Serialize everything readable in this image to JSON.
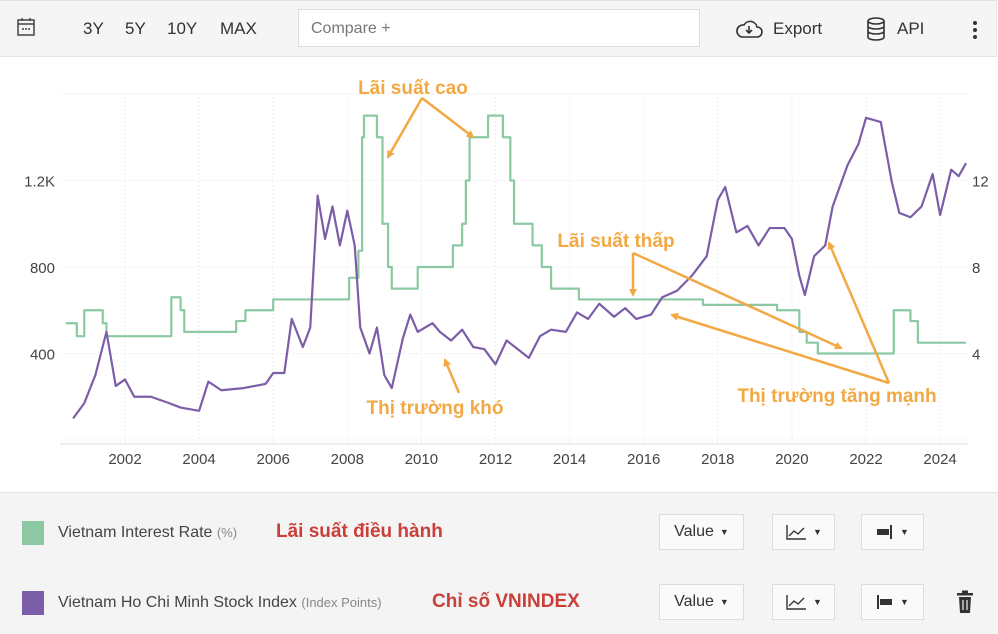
{
  "toolbar": {
    "ranges": [
      "3Y",
      "5Y",
      "10Y",
      "MAX"
    ],
    "compare_placeholder": "Compare +",
    "export_label": "Export",
    "api_label": "API"
  },
  "colors": {
    "rate": "#8cc9a3",
    "index": "#7b5ea7",
    "annotation": "#f2a843",
    "note": "#c9403a"
  },
  "chart_data": {
    "type": "line",
    "x_ticks": [
      "2002",
      "2004",
      "2006",
      "2008",
      "2010",
      "2012",
      "2014",
      "2016",
      "2018",
      "2020",
      "2022",
      "2024"
    ],
    "left_axis": {
      "ticks": [
        "400",
        "800",
        "1.2K"
      ],
      "tick_values": [
        400,
        800,
        1200
      ],
      "range": [
        0,
        1600
      ]
    },
    "right_axis": {
      "ticks": [
        "4",
        "8",
        "12"
      ],
      "tick_values": [
        4,
        8,
        12
      ],
      "range": [
        0,
        16
      ]
    },
    "xlim": [
      2000.4,
      2024.9
    ],
    "series": [
      {
        "name": "Vietnam Interest Rate",
        "axis": "right",
        "step": true,
        "points": [
          [
            2000.4,
            5.4
          ],
          [
            2000.7,
            4.8
          ],
          [
            2000.9,
            6
          ],
          [
            2001.4,
            5.4
          ],
          [
            2001.5,
            4.8
          ],
          [
            2003.25,
            6.6
          ],
          [
            2003.5,
            6
          ],
          [
            2003.6,
            5
          ],
          [
            2005.0,
            5.5
          ],
          [
            2005.25,
            6
          ],
          [
            2006.0,
            6.5
          ],
          [
            2008.05,
            7.5
          ],
          [
            2008.3,
            8.75
          ],
          [
            2008.4,
            14
          ],
          [
            2008.45,
            15
          ],
          [
            2008.8,
            14
          ],
          [
            2008.95,
            10
          ],
          [
            2009.1,
            8
          ],
          [
            2009.2,
            7
          ],
          [
            2009.9,
            8
          ],
          [
            2010.85,
            9
          ],
          [
            2011.1,
            10
          ],
          [
            2011.2,
            12
          ],
          [
            2011.3,
            14
          ],
          [
            2011.8,
            15
          ],
          [
            2012.2,
            14
          ],
          [
            2012.4,
            12
          ],
          [
            2012.5,
            10
          ],
          [
            2013.0,
            9
          ],
          [
            2013.25,
            8
          ],
          [
            2013.5,
            7
          ],
          [
            2014.25,
            6.5
          ],
          [
            2017.6,
            6.25
          ],
          [
            2019.6,
            6
          ],
          [
            2020.2,
            5
          ],
          [
            2020.4,
            4.5
          ],
          [
            2020.7,
            4
          ],
          [
            2022.6,
            4
          ],
          [
            2022.75,
            6
          ],
          [
            2023.2,
            5.5
          ],
          [
            2023.4,
            4.5
          ],
          [
            2024.7,
            4.5
          ]
        ]
      },
      {
        "name": "Vietnam Ho Chi Minh Stock Index",
        "axis": "left",
        "step": false,
        "points": [
          [
            2000.6,
            100
          ],
          [
            2000.9,
            170
          ],
          [
            2001.2,
            300
          ],
          [
            2001.5,
            500
          ],
          [
            2001.75,
            250
          ],
          [
            2002.0,
            280
          ],
          [
            2002.25,
            200
          ],
          [
            2002.7,
            200
          ],
          [
            2003.2,
            170
          ],
          [
            2003.5,
            150
          ],
          [
            2004.0,
            135
          ],
          [
            2004.25,
            270
          ],
          [
            2004.6,
            230
          ],
          [
            2005.2,
            240
          ],
          [
            2005.8,
            260
          ],
          [
            2006.0,
            310
          ],
          [
            2006.3,
            310
          ],
          [
            2006.5,
            560
          ],
          [
            2006.8,
            430
          ],
          [
            2007.0,
            520
          ],
          [
            2007.2,
            1130
          ],
          [
            2007.4,
            930
          ],
          [
            2007.6,
            1080
          ],
          [
            2007.8,
            900
          ],
          [
            2008.0,
            1060
          ],
          [
            2008.2,
            900
          ],
          [
            2008.35,
            520
          ],
          [
            2008.6,
            400
          ],
          [
            2008.8,
            520
          ],
          [
            2009.0,
            300
          ],
          [
            2009.2,
            240
          ],
          [
            2009.5,
            470
          ],
          [
            2009.7,
            580
          ],
          [
            2009.9,
            500
          ],
          [
            2010.3,
            540
          ],
          [
            2010.5,
            500
          ],
          [
            2010.8,
            460
          ],
          [
            2011.1,
            510
          ],
          [
            2011.4,
            430
          ],
          [
            2011.7,
            420
          ],
          [
            2012.0,
            350
          ],
          [
            2012.3,
            460
          ],
          [
            2012.6,
            420
          ],
          [
            2012.9,
            380
          ],
          [
            2013.2,
            480
          ],
          [
            2013.5,
            510
          ],
          [
            2013.9,
            500
          ],
          [
            2014.2,
            590
          ],
          [
            2014.5,
            560
          ],
          [
            2014.8,
            630
          ],
          [
            2015.2,
            570
          ],
          [
            2015.5,
            610
          ],
          [
            2015.8,
            560
          ],
          [
            2016.2,
            580
          ],
          [
            2016.5,
            660
          ],
          [
            2016.9,
            690
          ],
          [
            2017.3,
            760
          ],
          [
            2017.7,
            850
          ],
          [
            2018.0,
            1110
          ],
          [
            2018.2,
            1170
          ],
          [
            2018.5,
            960
          ],
          [
            2018.8,
            990
          ],
          [
            2019.1,
            900
          ],
          [
            2019.4,
            980
          ],
          [
            2019.8,
            980
          ],
          [
            2020.0,
            930
          ],
          [
            2020.2,
            760
          ],
          [
            2020.35,
            670
          ],
          [
            2020.6,
            850
          ],
          [
            2020.9,
            900
          ],
          [
            2021.1,
            1080
          ],
          [
            2021.5,
            1270
          ],
          [
            2021.8,
            1370
          ],
          [
            2022.0,
            1490
          ],
          [
            2022.4,
            1470
          ],
          [
            2022.7,
            1190
          ],
          [
            2022.9,
            1050
          ],
          [
            2023.2,
            1030
          ],
          [
            2023.5,
            1080
          ],
          [
            2023.8,
            1230
          ],
          [
            2024.0,
            1040
          ],
          [
            2024.3,
            1250
          ],
          [
            2024.5,
            1220
          ],
          [
            2024.7,
            1280
          ]
        ]
      }
    ],
    "annotations": [
      "Lãi suất cao",
      "Lãi suất thấp",
      "Thị trường khó",
      "Thị trường tăng mạnh"
    ]
  },
  "legend": [
    {
      "name": "Vietnam Interest Rate",
      "unit": "(%)",
      "note": "Lãi suất điều hành",
      "value_label": "Value"
    },
    {
      "name": "Vietnam Ho Chi Minh Stock Index",
      "unit": "(Index Points)",
      "note": "Chỉ số VNINDEX",
      "value_label": "Value"
    }
  ]
}
